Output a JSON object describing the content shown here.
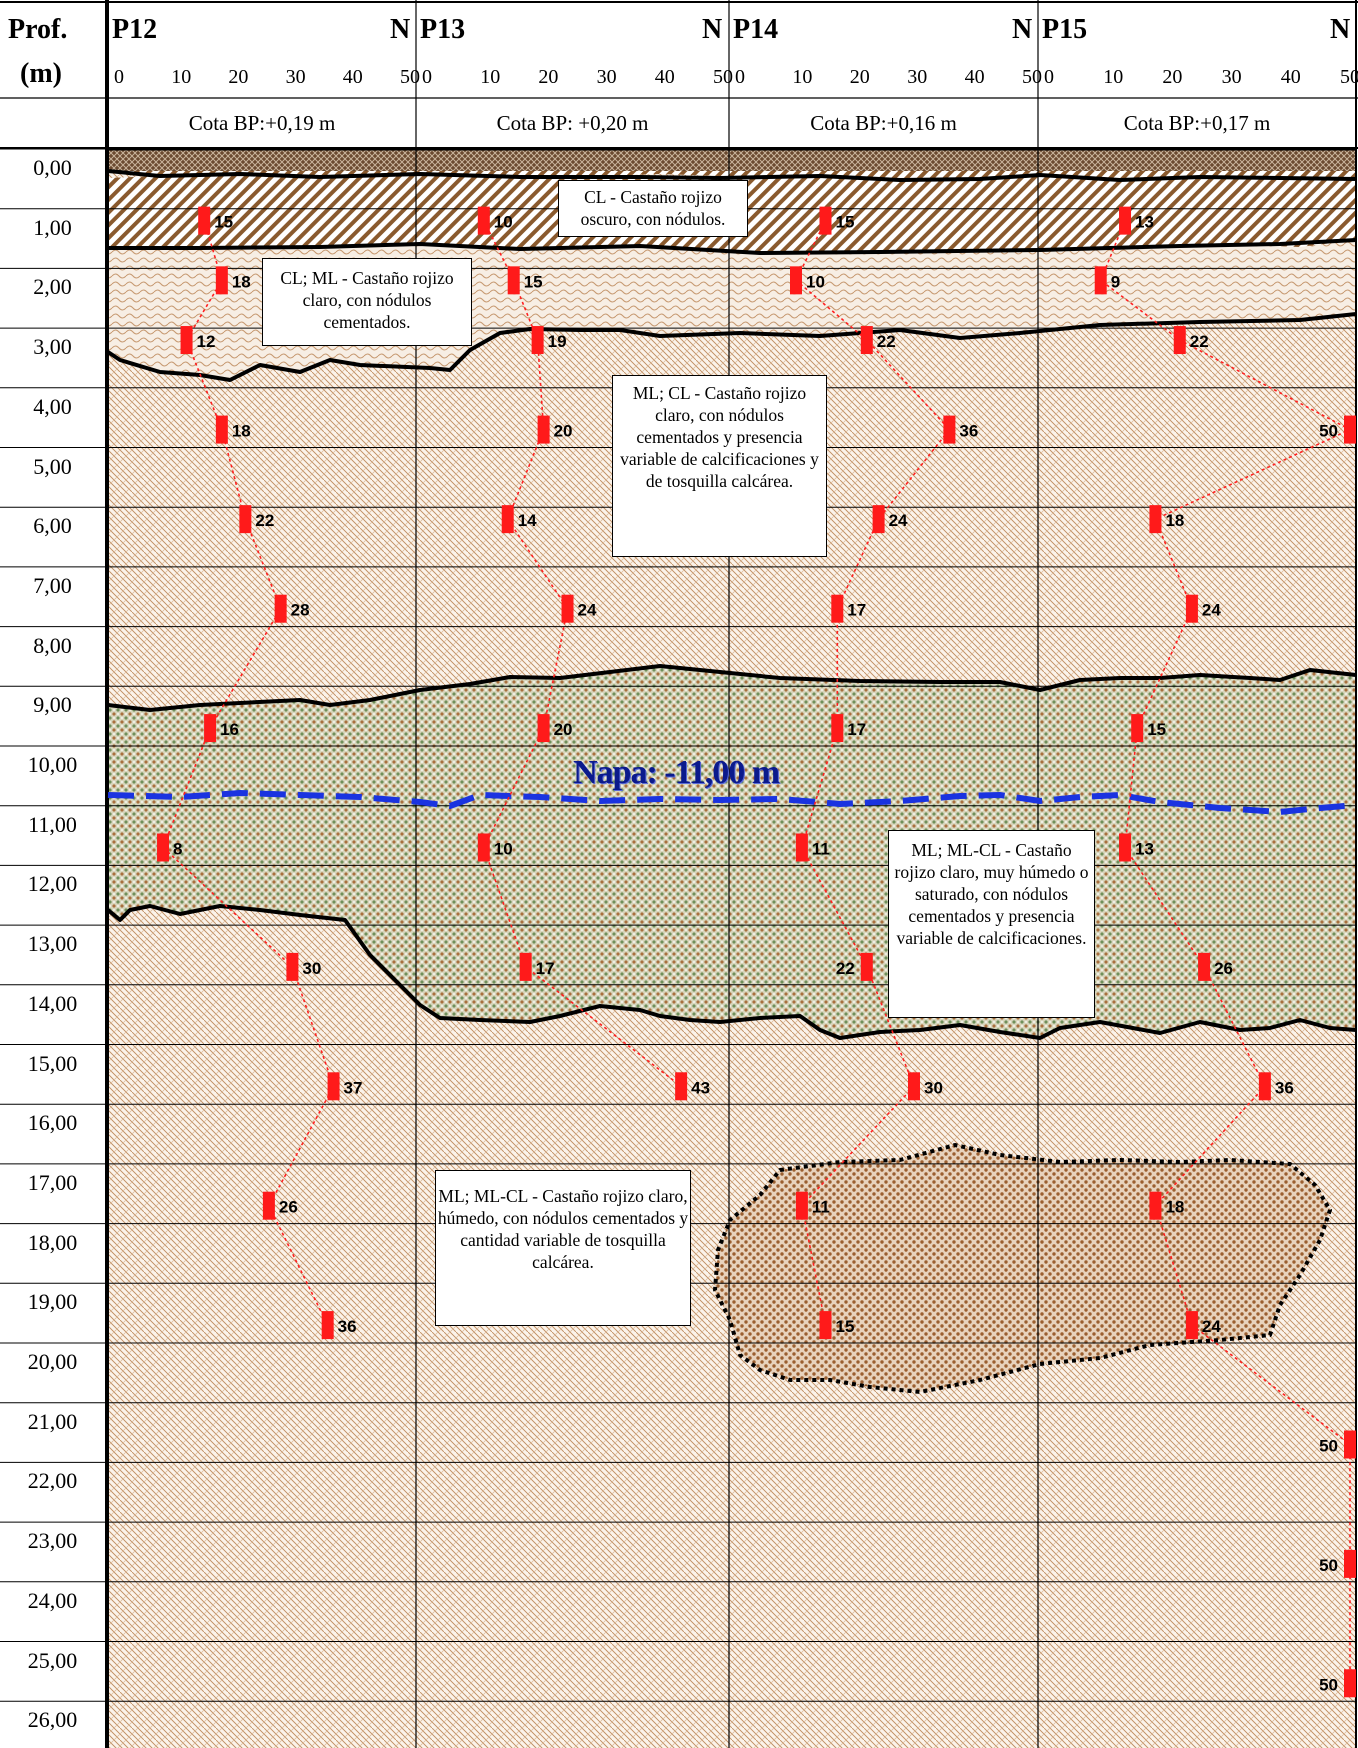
{
  "header": {
    "depth_title_line1": "Prof.",
    "depth_title_line2": "(m)",
    "north_mark": "N",
    "scale_ticks": [
      "0",
      "10",
      "20",
      "30",
      "40",
      "50"
    ]
  },
  "boreholes": [
    {
      "id": "P12",
      "cota": "Cota BP:+0,19  m"
    },
    {
      "id": "P13",
      "cota": "Cota BP: +0,20  m"
    },
    {
      "id": "P14",
      "cota": "Cota BP:+0,16  m"
    },
    {
      "id": "P15",
      "cota": "Cota BP:+0,17  m"
    }
  ],
  "depths": [
    "0,00",
    "1,00",
    "2,00",
    "3,00",
    "4,00",
    "5,00",
    "6,00",
    "7,00",
    "8,00",
    "9,00",
    "10,00",
    "11,00",
    "12,00",
    "13,00",
    "14,00",
    "15,00",
    "16,00",
    "17,00",
    "18,00",
    "19,00",
    "20,00",
    "21,00",
    "22,00",
    "23,00",
    "24,00",
    "25,00",
    "26,00"
  ],
  "water_table": {
    "label": "Napa: -11,00 m",
    "depth_m": 11.0,
    "color": "#1a33e0"
  },
  "spt": {
    "P12": [
      [
        1.2,
        15
      ],
      [
        2.2,
        18
      ],
      [
        3.2,
        12
      ],
      [
        4.7,
        18
      ],
      [
        6.2,
        22
      ],
      [
        7.7,
        28
      ],
      [
        9.7,
        16
      ],
      [
        11.7,
        8
      ],
      [
        13.7,
        30
      ],
      [
        15.7,
        37
      ],
      [
        17.7,
        26
      ],
      [
        19.7,
        36
      ]
    ],
    "P13": [
      [
        1.2,
        10
      ],
      [
        2.2,
        15
      ],
      [
        3.2,
        19
      ],
      [
        4.7,
        20
      ],
      [
        6.2,
        14
      ],
      [
        7.7,
        24
      ],
      [
        9.7,
        20
      ],
      [
        11.7,
        10
      ],
      [
        13.7,
        17
      ],
      [
        15.7,
        43
      ]
    ],
    "P14": [
      [
        1.2,
        15
      ],
      [
        2.2,
        10
      ],
      [
        3.2,
        22
      ],
      [
        4.7,
        36
      ],
      [
        6.2,
        24
      ],
      [
        7.7,
        17
      ],
      [
        9.7,
        17
      ],
      [
        11.7,
        11
      ],
      [
        13.7,
        22
      ],
      [
        15.7,
        30
      ],
      [
        17.7,
        11
      ],
      [
        19.7,
        15
      ]
    ],
    "P15": [
      [
        1.2,
        13
      ],
      [
        2.2,
        9
      ],
      [
        3.2,
        22
      ],
      [
        4.7,
        50
      ],
      [
        6.2,
        18
      ],
      [
        7.7,
        24
      ],
      [
        9.7,
        15
      ],
      [
        11.7,
        13
      ],
      [
        13.7,
        26
      ],
      [
        15.7,
        36
      ],
      [
        17.7,
        18
      ],
      [
        19.7,
        24
      ],
      [
        21.7,
        50
      ],
      [
        23.7,
        50
      ],
      [
        25.7,
        50
      ]
    ]
  },
  "notes": {
    "n1": "CL - Castaño rojizo oscuro, con nódulos.",
    "n2": "CL; ML - Castaño rojizo claro, con nódulos cementados.",
    "n3": "ML; CL - Castaño rojizo claro, con nódulos cementados y presencia variable de calcificaciones y de tosquilla calcárea.",
    "n4": "ML; ML-CL - Castaño rojizo claro, muy húmedo o saturado, con nódulos cementados y presencia variable de calcificaciones.",
    "n5": "ML; ML-CL - Castaño rojizo claro, húmedo, con nódulos cementados y cantidad variable de tosquilla calcárea."
  },
  "colors": {
    "spt_bar": "#ff1a1a",
    "spt_line": "#ff2020",
    "boundary": "#000000",
    "layer_brown": "#8a5a2e",
    "layer_light": "#c9a27a"
  }
}
